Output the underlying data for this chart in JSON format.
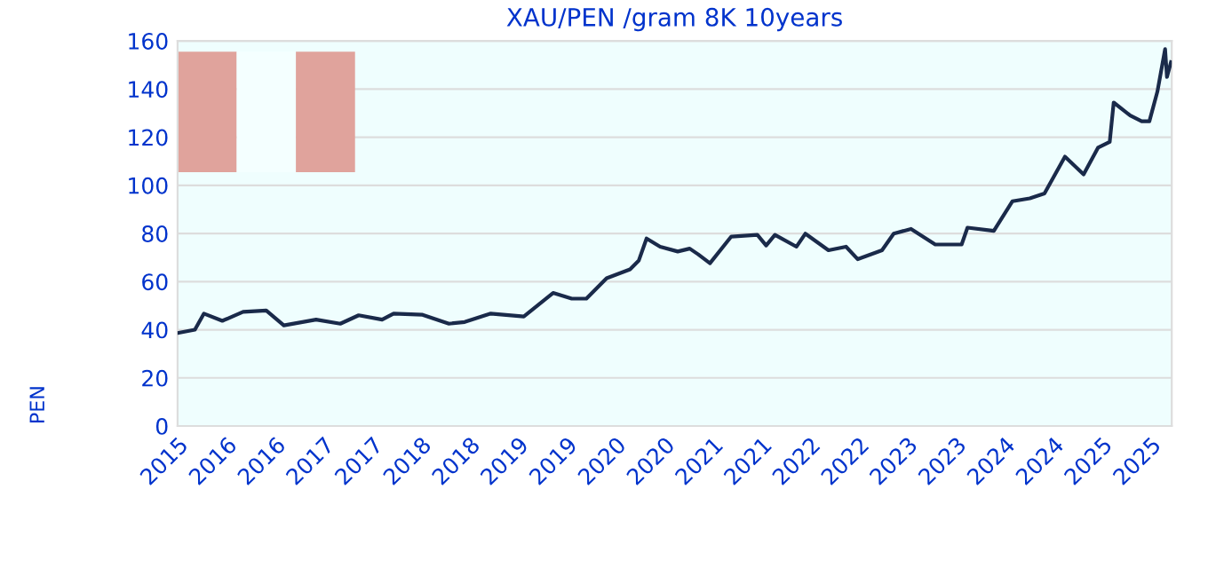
{
  "chart_data": {
    "type": "line",
    "title": "XAU/PEN /gram 8K 10years",
    "ylabel": "PEN",
    "x": [
      "2015-10-01",
      "2015-12-05",
      "2016-01-08",
      "2016-03-17",
      "2016-06-03",
      "2016-08-29",
      "2016-11-03",
      "2017-03-04",
      "2017-06-03",
      "2017-08-11",
      "2017-11-07",
      "2017-12-20",
      "2018-04-08",
      "2018-07-16",
      "2018-09-13",
      "2018-12-20",
      "2019-04-23",
      "2019-06-17",
      "2019-08-11",
      "2019-10-20",
      "2019-12-14",
      "2020-02-28",
      "2020-05-26",
      "2020-06-28",
      "2020-07-27",
      "2020-09-16",
      "2020-11-21",
      "2021-01-05",
      "2021-02-06",
      "2021-03-22",
      "2021-06-10",
      "2021-09-16",
      "2021-10-19",
      "2021-11-21",
      "2022-02-10",
      "2022-03-15",
      "2022-06-10",
      "2022-08-15",
      "2022-09-28",
      "2022-12-28",
      "2023-02-10",
      "2023-04-16",
      "2023-07-16",
      "2023-10-23",
      "2023-11-14",
      "2024-02-21",
      "2024-05-01",
      "2024-07-05",
      "2024-08-29",
      "2024-11-14",
      "2025-01-23",
      "2025-03-18",
      "2025-05-01",
      "2025-05-16",
      "2025-07-17",
      "2025-08-29",
      "2025-09-27",
      "2025-10-27",
      "2025-11-25",
      "2025-12-02",
      "2025-12-17"
    ],
    "series": [
      {
        "color": "#1a2a4a",
        "values": [
          38.6,
          40,
          46.7,
          43.7,
          47.4,
          48,
          41.8,
          44.2,
          42.5,
          46,
          44.2,
          46.7,
          46.2,
          42.5,
          43.2,
          46.7,
          45.5,
          50.4,
          55.3,
          52.9,
          52.9,
          61.4,
          65.1,
          68.8,
          77.9,
          74.5,
          72.5,
          73.7,
          71.3,
          67.6,
          78.7,
          79.4,
          75,
          79.4,
          74.5,
          79.9,
          73,
          74.5,
          69.3,
          73,
          79.9,
          81.9,
          75.4,
          75.4,
          82.4,
          81.1,
          93.4,
          94.6,
          96.6,
          111.9,
          104.5,
          115.6,
          118,
          134.4,
          129,
          126.6,
          126.6,
          138.9,
          156.6,
          145,
          151.2
        ]
      }
    ],
    "xlim": [
      "2015-10-01",
      "2025-12-20"
    ],
    "xticks": [
      {
        "value": "2015-10-01",
        "label": "2015"
      },
      {
        "value": "2016-04-01",
        "label": "2016"
      },
      {
        "value": "2016-10-01",
        "label": "2016"
      },
      {
        "value": "2017-04-01",
        "label": "2017"
      },
      {
        "value": "2017-10-01",
        "label": "2017"
      },
      {
        "value": "2018-04-01",
        "label": "2018"
      },
      {
        "value": "2018-10-01",
        "label": "2018"
      },
      {
        "value": "2019-04-01",
        "label": "2019"
      },
      {
        "value": "2019-10-01",
        "label": "2019"
      },
      {
        "value": "2020-04-01",
        "label": "2020"
      },
      {
        "value": "2020-10-01",
        "label": "2020"
      },
      {
        "value": "2021-04-01",
        "label": "2021"
      },
      {
        "value": "2021-10-01",
        "label": "2021"
      },
      {
        "value": "2022-04-01",
        "label": "2022"
      },
      {
        "value": "2022-10-01",
        "label": "2022"
      },
      {
        "value": "2023-04-01",
        "label": "2023"
      },
      {
        "value": "2023-10-01",
        "label": "2023"
      },
      {
        "value": "2024-04-01",
        "label": "2024"
      },
      {
        "value": "2024-10-01",
        "label": "2024"
      },
      {
        "value": "2025-04-01",
        "label": "2025"
      },
      {
        "value": "2025-10-01",
        "label": "2025"
      }
    ],
    "ylim": [
      0,
      160
    ],
    "yticks": [
      0,
      20,
      40,
      60,
      80,
      100,
      120,
      140,
      160
    ],
    "grid": "y",
    "marker": "none",
    "line_style": "solid",
    "legend": false
  }
}
